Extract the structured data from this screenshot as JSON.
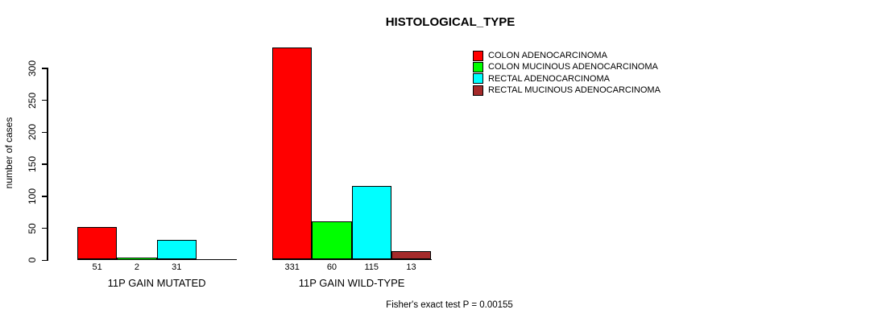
{
  "chart_data": {
    "type": "bar",
    "title": "HISTOLOGICAL_TYPE",
    "ylabel": "number of cases",
    "yticks": [
      0,
      50,
      100,
      150,
      200,
      250,
      300
    ],
    "ylim": [
      0,
      340
    ],
    "grid": false,
    "legend_position": "top-right",
    "categories": [
      "11P GAIN MUTATED",
      "11P GAIN WILD-TYPE"
    ],
    "series": [
      {
        "name": "COLON ADENOCARCINOMA",
        "color": "#FF0000",
        "values": [
          51,
          331
        ]
      },
      {
        "name": "COLON MUCINOUS ADENOCARCINOMA",
        "color": "#00FF00",
        "values": [
          2,
          60
        ]
      },
      {
        "name": "RECTAL ADENOCARCINOMA",
        "color": "#00FFFF",
        "values": [
          31,
          115
        ]
      },
      {
        "name": "RECTAL MUCINOUS ADENOCARCINOMA",
        "color": "#A52A2A",
        "values": [
          0,
          13
        ]
      }
    ],
    "bar_value_labels": [
      [
        "51",
        "2",
        "31",
        ""
      ],
      [
        "331",
        "60",
        "115",
        "13"
      ]
    ],
    "annotation": "Fisher's exact test P = 0.00155"
  }
}
